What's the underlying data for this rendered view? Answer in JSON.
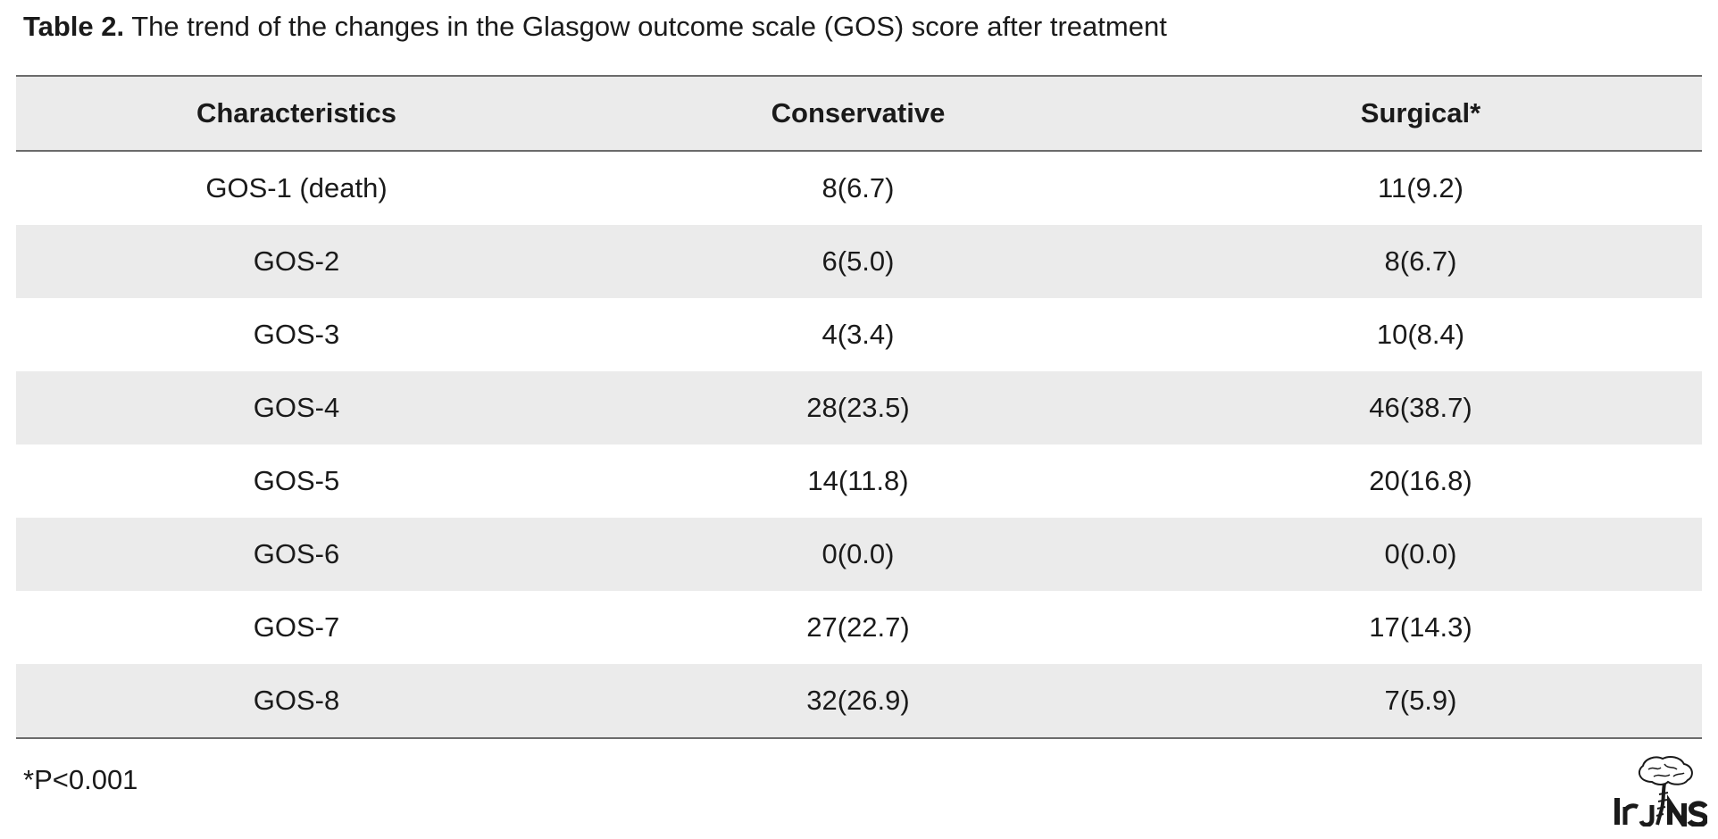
{
  "caption": {
    "label": "Table 2.",
    "text": " The trend of the changes in the Glasgow outcome scale (GOS) score after treatment"
  },
  "table": {
    "headers": [
      "Characteristics",
      "Conservative",
      "Surgical*"
    ],
    "rows": [
      [
        "GOS-1 (death)",
        "8(6.7)",
        "11(9.2)"
      ],
      [
        "GOS-2",
        "6(5.0)",
        "8(6.7)"
      ],
      [
        "GOS-3",
        "4(3.4)",
        "10(8.4)"
      ],
      [
        "GOS-4",
        "28(23.5)",
        "46(38.7)"
      ],
      [
        "GOS-5",
        "14(11.8)",
        "20(16.8)"
      ],
      [
        "GOS-6",
        "0(0.0)",
        "0(0.0)"
      ],
      [
        "GOS-7",
        "27(22.7)",
        "17(14.3)"
      ],
      [
        "GOS-8",
        "32(26.9)",
        "7(5.9)"
      ]
    ]
  },
  "footnote": "*P<0.001",
  "logo": {
    "icon": "irjns-brain-logo",
    "text": "IrJNS"
  },
  "colors": {
    "header_bg": "#ebebeb",
    "stripe_bg": "#ebebeb",
    "rule": "#6b6b6b",
    "text": "#1a1a1a"
  }
}
